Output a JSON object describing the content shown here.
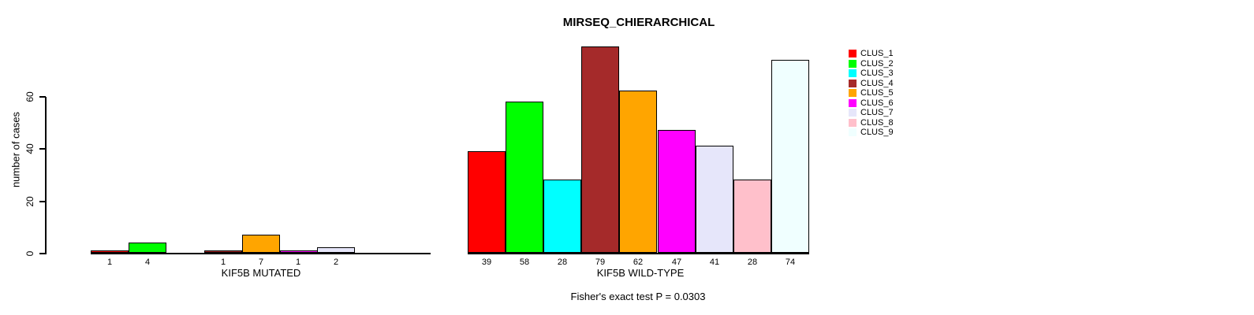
{
  "title": "MIRSEQ_CHIERARCHICAL",
  "subtitle": "Fisher's exact test P = 0.0303",
  "y_axis": {
    "label": "number of cases",
    "ticks": [
      "0",
      "20",
      "40",
      "60"
    ],
    "tick_values": [
      0,
      20,
      40,
      60
    ]
  },
  "palette": [
    "#FF0000",
    "#00FF00",
    "#00FFFF",
    "#A52A2A",
    "#FFA500",
    "#FF00FF",
    "#E6E6FA",
    "#FFC0CB",
    "#F0FFFF"
  ],
  "legend": {
    "position": "right",
    "items": [
      {
        "label": "CLUS_1",
        "color": "#FF0000"
      },
      {
        "label": "CLUS_2",
        "color": "#00FF00"
      },
      {
        "label": "CLUS_3",
        "color": "#00FFFF"
      },
      {
        "label": "CLUS_4",
        "color": "#A52A2A"
      },
      {
        "label": "CLUS_5",
        "color": "#FFA500"
      },
      {
        "label": "CLUS_6",
        "color": "#FF00FF"
      },
      {
        "label": "CLUS_7",
        "color": "#E6E6FA"
      },
      {
        "label": "CLUS_8",
        "color": "#FFC0CB"
      },
      {
        "label": "CLUS_9",
        "color": "#F0FFFF"
      }
    ]
  },
  "chart_data": [
    {
      "type": "bar",
      "title": "MIRSEQ_CHIERARCHICAL",
      "xlabel": "KIF5B MUTATED",
      "ylabel": "number of cases",
      "ylim": [
        0,
        80
      ],
      "grid": false,
      "categories": [
        "CLUS_1",
        "CLUS_2",
        "CLUS_3",
        "CLUS_4",
        "CLUS_5",
        "CLUS_6",
        "CLUS_7",
        "CLUS_8",
        "CLUS_9"
      ],
      "values": [
        1,
        4,
        0,
        1,
        7,
        1,
        2,
        0,
        0
      ],
      "bar_value_labels": [
        "1",
        "4",
        "",
        "1",
        "7",
        "1",
        "2",
        "",
        ""
      ],
      "colors": [
        "#FF0000",
        "#00FF00",
        "#00FFFF",
        "#A52A2A",
        "#FFA500",
        "#FF00FF",
        "#E6E6FA",
        "#FFC0CB",
        "#F0FFFF"
      ]
    },
    {
      "type": "bar",
      "title": "MIRSEQ_CHIERARCHICAL",
      "xlabel": "KIF5B WILD-TYPE",
      "ylabel": "number of cases",
      "ylim": [
        0,
        80
      ],
      "grid": false,
      "categories": [
        "CLUS_1",
        "CLUS_2",
        "CLUS_3",
        "CLUS_4",
        "CLUS_5",
        "CLUS_6",
        "CLUS_7",
        "CLUS_8",
        "CLUS_9"
      ],
      "values": [
        39,
        58,
        28,
        79,
        62,
        47,
        41,
        28,
        74
      ],
      "bar_value_labels": [
        "39",
        "58",
        "28",
        "79",
        "62",
        "47",
        "41",
        "28",
        "74"
      ],
      "colors": [
        "#FF0000",
        "#00FF00",
        "#00FFFF",
        "#A52A2A",
        "#FFA500",
        "#FF00FF",
        "#E6E6FA",
        "#FFC0CB",
        "#F0FFFF"
      ]
    }
  ]
}
